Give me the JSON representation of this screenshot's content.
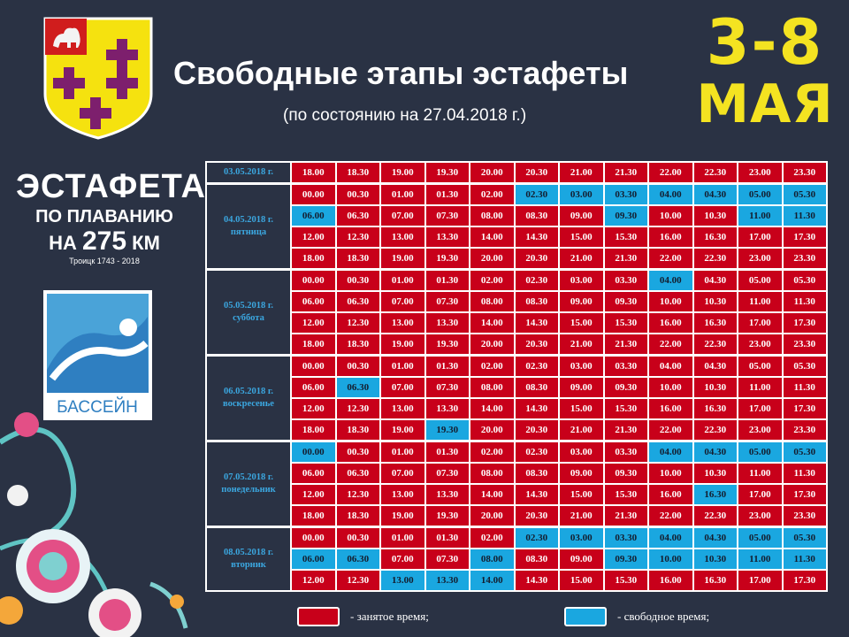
{
  "header": {
    "title": "Свободные этапы эстафеты",
    "subtitle": "(по состоянию на 27.04.2018 г.)",
    "dates_line1": "3-8",
    "dates_line2": "МАЯ"
  },
  "logo": {
    "line1": "ЭСТАФЕТА",
    "line2": "ПО ПЛАВАНИЮ",
    "line3_prefix": "НА",
    "line3_number": "275",
    "line3_suffix": "КМ",
    "line4": "Троицк 1743 - 2018",
    "pool_label": "БАССЕЙН"
  },
  "colors": {
    "busy": "#c8001a",
    "free": "#1aa7e0",
    "background": "#2a3244",
    "accent_yellow": "#f4e321"
  },
  "schedule": [
    {
      "date": "03.05.2018 г.",
      "weekday": "",
      "rows": [
        [
          [
            "18.00",
            "b"
          ],
          [
            "18.30",
            "b"
          ],
          [
            "19.00",
            "b"
          ],
          [
            "19.30",
            "b"
          ],
          [
            "20.00",
            "b"
          ],
          [
            "20.30",
            "b"
          ],
          [
            "21.00",
            "b"
          ],
          [
            "21.30",
            "b"
          ],
          [
            "22.00",
            "b"
          ],
          [
            "22.30",
            "b"
          ],
          [
            "23.00",
            "b"
          ],
          [
            "23.30",
            "b"
          ]
        ]
      ]
    },
    {
      "date": "04.05.2018 г.",
      "weekday": "пятница",
      "rows": [
        [
          [
            "00.00",
            "b"
          ],
          [
            "00.30",
            "b"
          ],
          [
            "01.00",
            "b"
          ],
          [
            "01.30",
            "b"
          ],
          [
            "02.00",
            "b"
          ],
          [
            "02.30",
            "f"
          ],
          [
            "03.00",
            "f"
          ],
          [
            "03.30",
            "f"
          ],
          [
            "04.00",
            "f"
          ],
          [
            "04.30",
            "f"
          ],
          [
            "05.00",
            "f"
          ],
          [
            "05.30",
            "f"
          ]
        ],
        [
          [
            "06.00",
            "f"
          ],
          [
            "06.30",
            "b"
          ],
          [
            "07.00",
            "b"
          ],
          [
            "07.30",
            "b"
          ],
          [
            "08.00",
            "b"
          ],
          [
            "08.30",
            "b"
          ],
          [
            "09.00",
            "b"
          ],
          [
            "09.30",
            "f"
          ],
          [
            "10.00",
            "b"
          ],
          [
            "10.30",
            "b"
          ],
          [
            "11.00",
            "f"
          ],
          [
            "11.30",
            "f"
          ]
        ],
        [
          [
            "12.00",
            "b"
          ],
          [
            "12.30",
            "b"
          ],
          [
            "13.00",
            "b"
          ],
          [
            "13.30",
            "b"
          ],
          [
            "14.00",
            "b"
          ],
          [
            "14.30",
            "b"
          ],
          [
            "15.00",
            "b"
          ],
          [
            "15.30",
            "b"
          ],
          [
            "16.00",
            "b"
          ],
          [
            "16.30",
            "b"
          ],
          [
            "17.00",
            "b"
          ],
          [
            "17.30",
            "b"
          ]
        ],
        [
          [
            "18.00",
            "b"
          ],
          [
            "18.30",
            "b"
          ],
          [
            "19.00",
            "b"
          ],
          [
            "19.30",
            "b"
          ],
          [
            "20.00",
            "b"
          ],
          [
            "20.30",
            "b"
          ],
          [
            "21.00",
            "b"
          ],
          [
            "21.30",
            "b"
          ],
          [
            "22.00",
            "b"
          ],
          [
            "22.30",
            "b"
          ],
          [
            "23.00",
            "b"
          ],
          [
            "23.30",
            "b"
          ]
        ]
      ]
    },
    {
      "date": "05.05.2018 г.",
      "weekday": "суббота",
      "rows": [
        [
          [
            "00.00",
            "b"
          ],
          [
            "00.30",
            "b"
          ],
          [
            "01.00",
            "b"
          ],
          [
            "01.30",
            "b"
          ],
          [
            "02.00",
            "b"
          ],
          [
            "02.30",
            "b"
          ],
          [
            "03.00",
            "b"
          ],
          [
            "03.30",
            "b"
          ],
          [
            "04.00",
            "f"
          ],
          [
            "04.30",
            "b"
          ],
          [
            "05.00",
            "b"
          ],
          [
            "05.30",
            "b"
          ]
        ],
        [
          [
            "06.00",
            "b"
          ],
          [
            "06.30",
            "b"
          ],
          [
            "07.00",
            "b"
          ],
          [
            "07.30",
            "b"
          ],
          [
            "08.00",
            "b"
          ],
          [
            "08.30",
            "b"
          ],
          [
            "09.00",
            "b"
          ],
          [
            "09.30",
            "b"
          ],
          [
            "10.00",
            "b"
          ],
          [
            "10.30",
            "b"
          ],
          [
            "11.00",
            "b"
          ],
          [
            "11.30",
            "b"
          ]
        ],
        [
          [
            "12.00",
            "b"
          ],
          [
            "12.30",
            "b"
          ],
          [
            "13.00",
            "b"
          ],
          [
            "13.30",
            "b"
          ],
          [
            "14.00",
            "b"
          ],
          [
            "14.30",
            "b"
          ],
          [
            "15.00",
            "b"
          ],
          [
            "15.30",
            "b"
          ],
          [
            "16.00",
            "b"
          ],
          [
            "16.30",
            "b"
          ],
          [
            "17.00",
            "b"
          ],
          [
            "17.30",
            "b"
          ]
        ],
        [
          [
            "18.00",
            "b"
          ],
          [
            "18.30",
            "b"
          ],
          [
            "19.00",
            "b"
          ],
          [
            "19.30",
            "b"
          ],
          [
            "20.00",
            "b"
          ],
          [
            "20.30",
            "b"
          ],
          [
            "21.00",
            "b"
          ],
          [
            "21.30",
            "b"
          ],
          [
            "22.00",
            "b"
          ],
          [
            "22.30",
            "b"
          ],
          [
            "23.00",
            "b"
          ],
          [
            "23.30",
            "b"
          ]
        ]
      ]
    },
    {
      "date": "06.05.2018 г.",
      "weekday": "воскресенье",
      "rows": [
        [
          [
            "00.00",
            "b"
          ],
          [
            "00.30",
            "b"
          ],
          [
            "01.00",
            "b"
          ],
          [
            "01.30",
            "b"
          ],
          [
            "02.00",
            "b"
          ],
          [
            "02.30",
            "b"
          ],
          [
            "03.00",
            "b"
          ],
          [
            "03.30",
            "b"
          ],
          [
            "04.00",
            "b"
          ],
          [
            "04.30",
            "b"
          ],
          [
            "05.00",
            "b"
          ],
          [
            "05.30",
            "b"
          ]
        ],
        [
          [
            "06.00",
            "b"
          ],
          [
            "06.30",
            "f"
          ],
          [
            "07.00",
            "b"
          ],
          [
            "07.30",
            "b"
          ],
          [
            "08.00",
            "b"
          ],
          [
            "08.30",
            "b"
          ],
          [
            "09.00",
            "b"
          ],
          [
            "09.30",
            "b"
          ],
          [
            "10.00",
            "b"
          ],
          [
            "10.30",
            "b"
          ],
          [
            "11.00",
            "b"
          ],
          [
            "11.30",
            "b"
          ]
        ],
        [
          [
            "12.00",
            "b"
          ],
          [
            "12.30",
            "b"
          ],
          [
            "13.00",
            "b"
          ],
          [
            "13.30",
            "b"
          ],
          [
            "14.00",
            "b"
          ],
          [
            "14.30",
            "b"
          ],
          [
            "15.00",
            "b"
          ],
          [
            "15.30",
            "b"
          ],
          [
            "16.00",
            "b"
          ],
          [
            "16.30",
            "b"
          ],
          [
            "17.00",
            "b"
          ],
          [
            "17.30",
            "b"
          ]
        ],
        [
          [
            "18.00",
            "b"
          ],
          [
            "18.30",
            "b"
          ],
          [
            "19.00",
            "b"
          ],
          [
            "19.30",
            "f"
          ],
          [
            "20.00",
            "b"
          ],
          [
            "20.30",
            "b"
          ],
          [
            "21.00",
            "b"
          ],
          [
            "21.30",
            "b"
          ],
          [
            "22.00",
            "b"
          ],
          [
            "22.30",
            "b"
          ],
          [
            "23.00",
            "b"
          ],
          [
            "23.30",
            "b"
          ]
        ]
      ]
    },
    {
      "date": "07.05.2018 г.",
      "weekday": "понедельник",
      "rows": [
        [
          [
            "00.00",
            "f"
          ],
          [
            "00.30",
            "b"
          ],
          [
            "01.00",
            "b"
          ],
          [
            "01.30",
            "b"
          ],
          [
            "02.00",
            "b"
          ],
          [
            "02.30",
            "b"
          ],
          [
            "03.00",
            "b"
          ],
          [
            "03.30",
            "b"
          ],
          [
            "04.00",
            "f"
          ],
          [
            "04.30",
            "f"
          ],
          [
            "05.00",
            "f"
          ],
          [
            "05.30",
            "f"
          ]
        ],
        [
          [
            "06.00",
            "b"
          ],
          [
            "06.30",
            "b"
          ],
          [
            "07.00",
            "b"
          ],
          [
            "07.30",
            "b"
          ],
          [
            "08.00",
            "b"
          ],
          [
            "08.30",
            "b"
          ],
          [
            "09.00",
            "b"
          ],
          [
            "09.30",
            "b"
          ],
          [
            "10.00",
            "b"
          ],
          [
            "10.30",
            "b"
          ],
          [
            "11.00",
            "b"
          ],
          [
            "11.30",
            "b"
          ]
        ],
        [
          [
            "12.00",
            "b"
          ],
          [
            "12.30",
            "b"
          ],
          [
            "13.00",
            "b"
          ],
          [
            "13.30",
            "b"
          ],
          [
            "14.00",
            "b"
          ],
          [
            "14.30",
            "b"
          ],
          [
            "15.00",
            "b"
          ],
          [
            "15.30",
            "b"
          ],
          [
            "16.00",
            "b"
          ],
          [
            "16.30",
            "f"
          ],
          [
            "17.00",
            "b"
          ],
          [
            "17.30",
            "b"
          ]
        ],
        [
          [
            "18.00",
            "b"
          ],
          [
            "18.30",
            "b"
          ],
          [
            "19.00",
            "b"
          ],
          [
            "19.30",
            "b"
          ],
          [
            "20.00",
            "b"
          ],
          [
            "20.30",
            "b"
          ],
          [
            "21.00",
            "b"
          ],
          [
            "21.30",
            "b"
          ],
          [
            "22.00",
            "b"
          ],
          [
            "22.30",
            "b"
          ],
          [
            "23.00",
            "b"
          ],
          [
            "23.30",
            "b"
          ]
        ]
      ]
    },
    {
      "date": "08.05.2018 г.",
      "weekday": "вторник",
      "rows": [
        [
          [
            "00.00",
            "b"
          ],
          [
            "00.30",
            "b"
          ],
          [
            "01.00",
            "b"
          ],
          [
            "01.30",
            "b"
          ],
          [
            "02.00",
            "b"
          ],
          [
            "02.30",
            "f"
          ],
          [
            "03.00",
            "f"
          ],
          [
            "03.30",
            "f"
          ],
          [
            "04.00",
            "f"
          ],
          [
            "04.30",
            "f"
          ],
          [
            "05.00",
            "f"
          ],
          [
            "05.30",
            "f"
          ]
        ],
        [
          [
            "06.00",
            "f"
          ],
          [
            "06.30",
            "f"
          ],
          [
            "07.00",
            "b"
          ],
          [
            "07.30",
            "b"
          ],
          [
            "08.00",
            "f"
          ],
          [
            "08.30",
            "b"
          ],
          [
            "09.00",
            "b"
          ],
          [
            "09.30",
            "f"
          ],
          [
            "10.00",
            "f"
          ],
          [
            "10.30",
            "f"
          ],
          [
            "11.00",
            "f"
          ],
          [
            "11.30",
            "f"
          ]
        ],
        [
          [
            "12.00",
            "b"
          ],
          [
            "12.30",
            "b"
          ],
          [
            "13.00",
            "f"
          ],
          [
            "13.30",
            "f"
          ],
          [
            "14.00",
            "f"
          ],
          [
            "14.30",
            "b"
          ],
          [
            "15.00",
            "b"
          ],
          [
            "15.30",
            "b"
          ],
          [
            "16.00",
            "b"
          ],
          [
            "16.30",
            "b"
          ],
          [
            "17.00",
            "b"
          ],
          [
            "17.30",
            "b"
          ]
        ]
      ]
    }
  ],
  "legend": {
    "busy_label": "- занятое время;",
    "free_label": "- свободное время;"
  }
}
